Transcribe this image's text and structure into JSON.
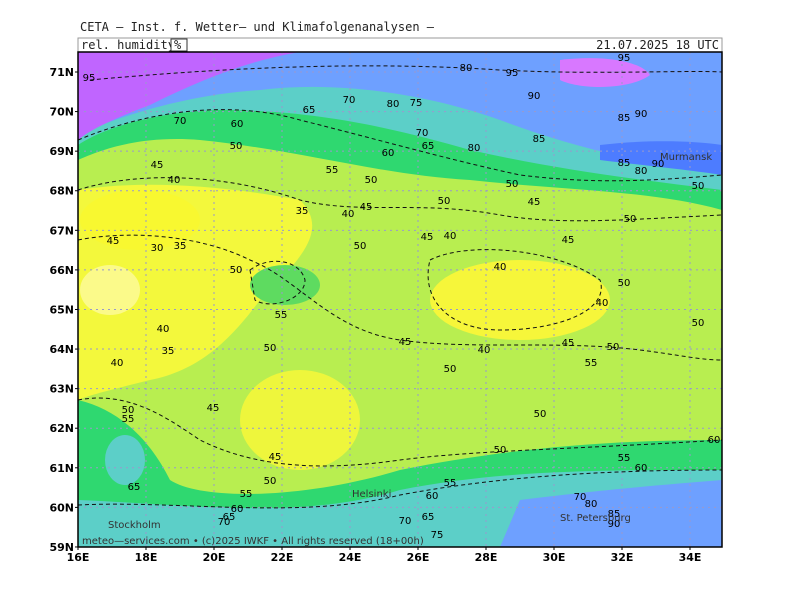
{
  "header": {
    "title": "CETA — Inst. f. Wetter— und Klimafolgenanalysen —",
    "variable": "rel. humidity",
    "unit": "%",
    "datetime": "21.07.2025 18 UTC"
  },
  "axes": {
    "lat_labels": [
      "71N",
      "70N",
      "69N",
      "68N",
      "67N",
      "66N",
      "65N",
      "64N",
      "63N",
      "62N",
      "61N",
      "60N",
      "59N"
    ],
    "lon_labels": [
      "16E",
      "18E",
      "20E",
      "22E",
      "24E",
      "26E",
      "28E",
      "30E",
      "32E",
      "34E"
    ]
  },
  "places": [
    "Murmansk",
    "Helsinki",
    "Stockholm",
    "St. Petersburg"
  ],
  "footer": "meteo—services.com • (c)2025 IWKF • All rights reserved (18+00h)",
  "contour_labels": [
    "95",
    "70",
    "80",
    "75",
    "65",
    "70",
    "60",
    "50",
    "45",
    "40",
    "55",
    "50",
    "60",
    "70",
    "65",
    "85",
    "90",
    "85",
    "80",
    "50",
    "50",
    "45",
    "50",
    "45",
    "40",
    "35",
    "45",
    "30",
    "35",
    "50",
    "45",
    "40",
    "45",
    "50",
    "50",
    "40",
    "55",
    "50",
    "40",
    "50",
    "40",
    "35",
    "40",
    "50",
    "45",
    "40",
    "45",
    "50",
    "55",
    "50",
    "45",
    "50",
    "55",
    "50",
    "50",
    "60",
    "55",
    "60",
    "45",
    "50",
    "65",
    "55",
    "55",
    "60",
    "60",
    "65",
    "70",
    "70",
    "65",
    "70",
    "80",
    "85",
    "90",
    "75",
    "95",
    "95",
    "80",
    "90",
    "85",
    "90",
    "80"
  ]
}
